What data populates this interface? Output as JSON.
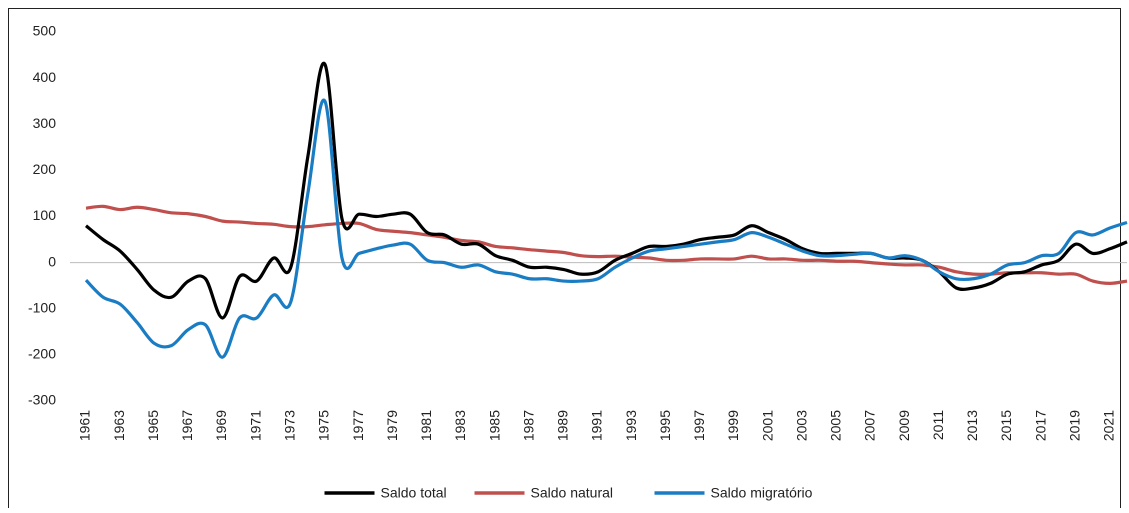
{
  "chart_data": {
    "type": "line",
    "x": [
      1961,
      1962,
      1963,
      1964,
      1965,
      1966,
      1967,
      1968,
      1969,
      1970,
      1971,
      1972,
      1973,
      1974,
      1975,
      1976,
      1977,
      1978,
      1979,
      1980,
      1981,
      1982,
      1983,
      1984,
      1985,
      1986,
      1987,
      1988,
      1989,
      1990,
      1991,
      1992,
      1993,
      1994,
      1995,
      1996,
      1997,
      1998,
      1999,
      2000,
      2001,
      2002,
      2003,
      2004,
      2005,
      2006,
      2007,
      2008,
      2009,
      2010,
      2011,
      2012,
      2013,
      2014,
      2015,
      2016,
      2017,
      2018,
      2019,
      2020,
      2021,
      2022
    ],
    "series": [
      {
        "name": "Saldo total",
        "color": "#000000",
        "values": [
          80,
          50,
          25,
          -15,
          -60,
          -75,
          -40,
          -35,
          -120,
          -30,
          -40,
          10,
          -10,
          230,
          430,
          95,
          105,
          100,
          105,
          105,
          65,
          60,
          40,
          40,
          15,
          5,
          -10,
          -10,
          -15,
          -25,
          -20,
          5,
          20,
          35,
          35,
          40,
          50,
          55,
          60,
          80,
          65,
          50,
          30,
          20,
          20,
          20,
          20,
          10,
          10,
          5,
          -20,
          -55,
          -55,
          -45,
          -25,
          -20,
          -5,
          5,
          40,
          20,
          30,
          45
        ]
      },
      {
        "name": "Saldo natural",
        "color": "#c0504d",
        "values": [
          118,
          122,
          115,
          120,
          115,
          108,
          106,
          100,
          90,
          88,
          85,
          83,
          78,
          78,
          82,
          85,
          85,
          72,
          68,
          65,
          60,
          55,
          48,
          45,
          35,
          32,
          28,
          25,
          22,
          15,
          13,
          14,
          12,
          10,
          5,
          5,
          8,
          8,
          8,
          14,
          8,
          8,
          5,
          5,
          3,
          3,
          0,
          -3,
          -5,
          -5,
          -10,
          -20,
          -25,
          -25,
          -22,
          -22,
          -22,
          -25,
          -25,
          -40,
          -45,
          -40
        ]
      },
      {
        "name": "Saldo migratório",
        "color": "#1a7dc4",
        "values": [
          -38,
          -75,
          -90,
          -130,
          -175,
          -180,
          -145,
          -135,
          -205,
          -120,
          -120,
          -70,
          -85,
          150,
          350,
          10,
          20,
          30,
          38,
          40,
          5,
          0,
          -10,
          -5,
          -20,
          -25,
          -35,
          -35,
          -40,
          -40,
          -35,
          -10,
          10,
          25,
          30,
          35,
          40,
          45,
          50,
          65,
          55,
          40,
          25,
          15,
          15,
          18,
          20,
          10,
          15,
          5,
          -20,
          -35,
          -35,
          -25,
          -5,
          0,
          15,
          20,
          65,
          60,
          75,
          87
        ]
      }
    ],
    "xlim": [
      1961,
      2022
    ],
    "xticks": [
      1961,
      1963,
      1965,
      1967,
      1969,
      1971,
      1973,
      1975,
      1977,
      1979,
      1981,
      1983,
      1985,
      1987,
      1989,
      1991,
      1993,
      1995,
      1997,
      1999,
      2001,
      2003,
      2005,
      2007,
      2009,
      2011,
      2013,
      2015,
      2017,
      2019,
      2021
    ],
    "ylim": [
      -300,
      500
    ],
    "yticks": [
      -300,
      -200,
      -100,
      0,
      100,
      200,
      300,
      400,
      500
    ],
    "legend": "bottom"
  }
}
